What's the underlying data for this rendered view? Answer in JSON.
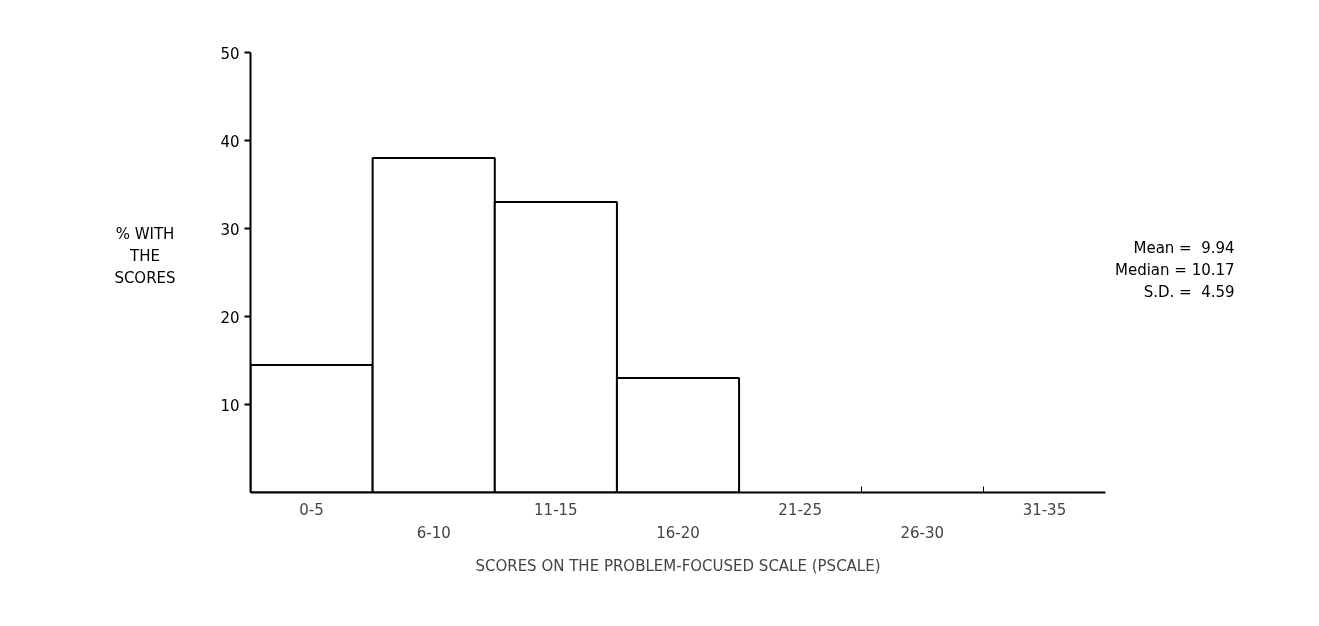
{
  "chart_data": {
    "type": "bar",
    "xlabel": "SCORES ON THE PROBLEM-FOCUSED SCALE (PSCALE)",
    "ylabel": "% WITH\nTHE\nSCORES",
    "categories": [
      "0-5",
      "6-10",
      "11-15",
      "16-20",
      "21-25",
      "26-30",
      "31-35"
    ],
    "values": [
      14.5,
      38,
      33,
      13,
      0,
      0,
      0
    ],
    "color": "#ffffff",
    "ylim": [
      0,
      50
    ],
    "yticks": [
      10,
      20,
      30,
      40,
      50
    ],
    "annotations": [
      "Mean =  9.94",
      "Median = 10.17",
      "S.D. =  4.59"
    ]
  }
}
